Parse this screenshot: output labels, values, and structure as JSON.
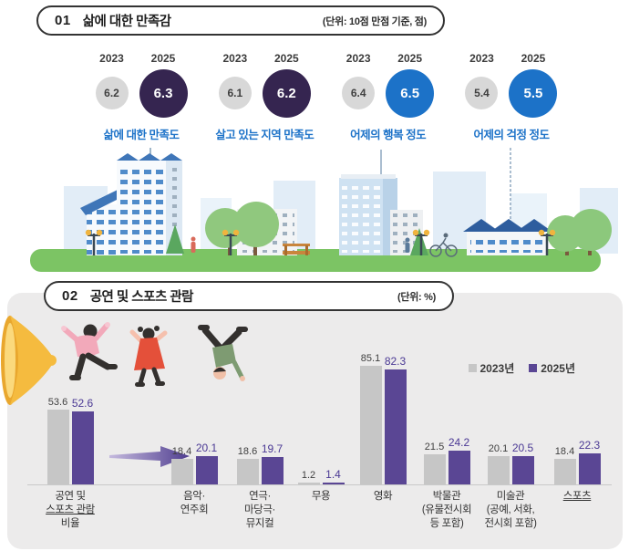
{
  "section1": {
    "number": "01",
    "title": "삶에 대한 만족감",
    "unit": "(단위: 10점 만점 기준, 점)",
    "year_labels": [
      "2023",
      "2025"
    ],
    "metrics": [
      {
        "label": "삶에 대한 만족도",
        "value_2023": "6.2",
        "value_2025": "6.3",
        "circle_color": "#352550"
      },
      {
        "label": "살고 있는 지역 만족도",
        "value_2023": "6.1",
        "value_2025": "6.2",
        "circle_color": "#352550"
      },
      {
        "label": "어제의 행복 정도",
        "value_2023": "6.4",
        "value_2025": "6.5",
        "circle_color": "#1c72c8"
      },
      {
        "label": "어제의 걱정 정도",
        "value_2023": "5.4",
        "value_2025": "5.5",
        "circle_color": "#1c72c8"
      }
    ],
    "colors": {
      "circle_2023": "#d8d8d8",
      "metric_label_text": "#1c72c8"
    }
  },
  "section2": {
    "number": "02",
    "title": "공연 및 스포츠 관람",
    "unit": "(단위: %)",
    "legend": [
      {
        "label": "2023년",
        "color": "#c6c6c6"
      },
      {
        "label": "2025년",
        "color": "#5a4694"
      }
    ],
    "chart_data": {
      "type": "bar",
      "title": "공연 및 스포츠 관람",
      "unit": "%",
      "ylim": [
        0,
        100
      ],
      "legend_position": "top-right",
      "categories": [
        "공연 및 스포츠 관람 비율",
        "음악·연주회",
        "연극·마당극·뮤지컬",
        "무용",
        "영화",
        "박물관(유물전시회 등 포함)",
        "미술관(공예, 서화, 전시회 포함)",
        "스포츠"
      ],
      "series": [
        {
          "name": "2023년",
          "color": "#c6c6c6",
          "values": [
            53.6,
            18.4,
            18.6,
            1.2,
            85.1,
            21.5,
            20.1,
            18.4
          ]
        },
        {
          "name": "2025년",
          "color": "#5a4694",
          "values": [
            52.6,
            20.1,
            19.7,
            1.4,
            82.3,
            24.2,
            20.5,
            22.3
          ]
        }
      ]
    },
    "category_labels": [
      [
        {
          "text": "공연 및",
          "underline": false
        },
        {
          "text": "스포츠 관람",
          "underline": true
        },
        {
          "text": "비율",
          "underline": false
        }
      ],
      [
        {
          "text": "음악·",
          "underline": false
        },
        {
          "text": "연주회",
          "underline": false
        }
      ],
      [
        {
          "text": "연극·",
          "underline": false
        },
        {
          "text": "마당극·",
          "underline": false
        },
        {
          "text": "뮤지컬",
          "underline": false
        }
      ],
      [
        {
          "text": "무용",
          "underline": false
        }
      ],
      [
        {
          "text": "영화",
          "underline": false
        }
      ],
      [
        {
          "text": "박물관",
          "underline": false
        },
        {
          "text": "(유물전시회",
          "underline": false
        },
        {
          "text": "등 포함)",
          "underline": false
        }
      ],
      [
        {
          "text": "미술관",
          "underline": false
        },
        {
          "text": "(공예, 서화,",
          "underline": false
        },
        {
          "text": "전시회 포함)",
          "underline": false
        }
      ],
      [
        {
          "text": "스포츠",
          "underline": true
        }
      ]
    ]
  }
}
